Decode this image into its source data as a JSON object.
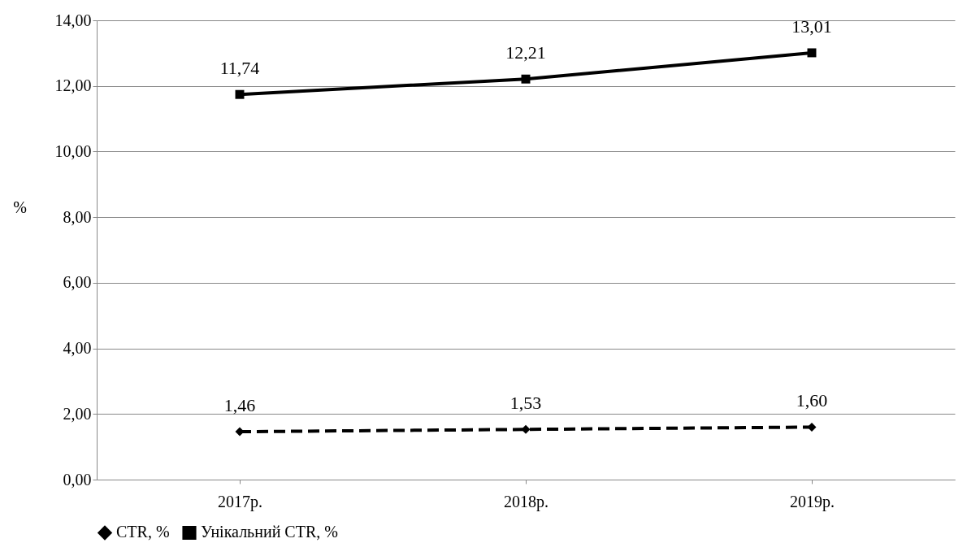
{
  "chart_data": {
    "type": "line",
    "ylabel": "%",
    "categories": [
      "2017р.",
      "2018р.",
      "2019р."
    ],
    "series": [
      {
        "name": "CTR, %",
        "color": "#000000",
        "values": [
          1.46,
          1.53,
          1.6
        ],
        "value_labels": [
          "1,46",
          "1,53",
          "1,60"
        ],
        "marker": "diamond",
        "line_style": "dashed"
      },
      {
        "name": "Унікальний CTR, %",
        "color": "#000000",
        "values": [
          11.74,
          12.21,
          13.01
        ],
        "value_labels": [
          "11,74",
          "12,21",
          "13,01"
        ],
        "marker": "square",
        "line_style": "solid"
      }
    ],
    "ylim": [
      0,
      14
    ],
    "yticks": [
      {
        "value": 0,
        "label": "0,00"
      },
      {
        "value": 2,
        "label": "2,00"
      },
      {
        "value": 4,
        "label": "4,00"
      },
      {
        "value": 6,
        "label": "6,00"
      },
      {
        "value": 8,
        "label": "8,00"
      },
      {
        "value": 10,
        "label": "10,00"
      },
      {
        "value": 12,
        "label": "12,00"
      },
      {
        "value": 14,
        "label": "14,00"
      }
    ],
    "grid": "y",
    "legend": "bottom"
  }
}
